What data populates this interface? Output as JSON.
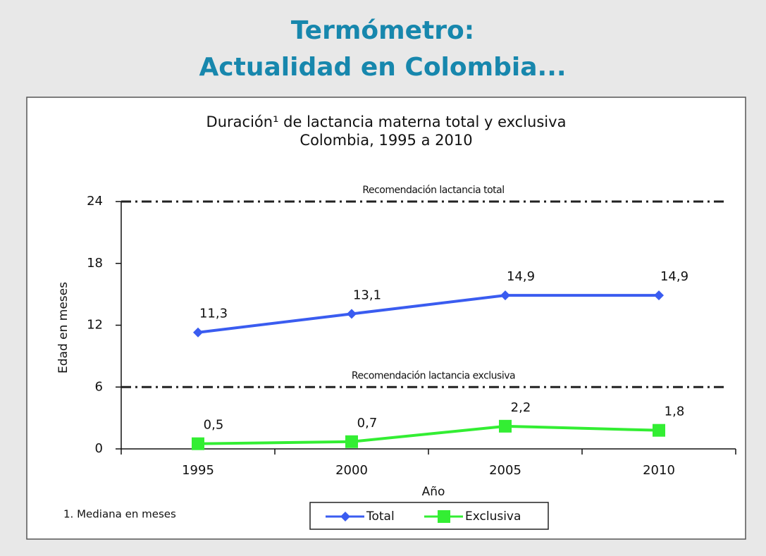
{
  "header": {
    "title_lines": [
      "Termómetro:",
      "Actualidad en Colombia..."
    ]
  },
  "chart_data": {
    "type": "line",
    "title": "Duración¹ de lactancia materna total y exclusiva",
    "subtitle": "Colombia, 1995 a 2010",
    "x_label": "Año",
    "y_label": "Edad en meses",
    "categories": [
      "1995",
      "2000",
      "2005",
      "2010"
    ],
    "series": [
      {
        "name": "Total",
        "color": "#3a5cf0",
        "marker": "diamond",
        "values": [
          11.3,
          13.1,
          14.9,
          14.9
        ],
        "value_labels": [
          "11,3",
          "13,1",
          "14,9",
          "14,9"
        ]
      },
      {
        "name": "Exclusiva",
        "color": "#33ee33",
        "marker": "square",
        "values": [
          0.5,
          0.7,
          2.2,
          1.8
        ],
        "value_labels": [
          "0,5",
          "0,7",
          "2,2",
          "1,8"
        ]
      }
    ],
    "ylim": [
      0,
      24
    ],
    "yticks": [
      0,
      6,
      12,
      18,
      24
    ],
    "reference_lines": [
      {
        "label": "Recomendación lactancia total",
        "value": 24
      },
      {
        "label": "Recomendación lactancia exclusiva",
        "value": 6
      }
    ],
    "footnote": "1. Mediana en meses",
    "legend": "bottom"
  }
}
